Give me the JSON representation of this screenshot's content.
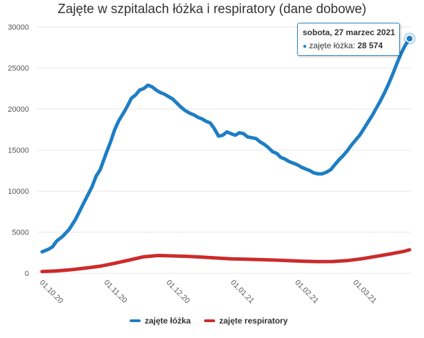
{
  "chart_data": {
    "type": "line",
    "title": "Zajęte w szpitalach łóżka i respiratory (dane dobowe)",
    "x_tick_labels": [
      "01.10.20",
      "01.11.20",
      "01.12.20",
      "01.01.21",
      "01.02.21",
      "01.03.21"
    ],
    "y_tick_labels": [
      "0",
      "5000",
      "10000",
      "15000",
      "20000",
      "25000",
      "30000"
    ],
    "ylim": [
      0,
      30000
    ],
    "grid": true,
    "legend_position": "bottom-center",
    "x_first_date": "2020-10-01",
    "x_last_date": "2021-03-27",
    "series": [
      {
        "name": "zajęte łóżka",
        "color": "#1e7ec3",
        "points": [
          [
            "2020-10-01",
            2600
          ],
          [
            "2020-10-04",
            2900
          ],
          [
            "2020-10-06",
            3200
          ],
          [
            "2020-10-08",
            3900
          ],
          [
            "2020-10-11",
            4500
          ],
          [
            "2020-10-14",
            5300
          ],
          [
            "2020-10-17",
            6500
          ],
          [
            "2020-10-20",
            8000
          ],
          [
            "2020-10-22",
            9000
          ],
          [
            "2020-10-25",
            10500
          ],
          [
            "2020-10-27",
            11800
          ],
          [
            "2020-10-29",
            12600
          ],
          [
            "2020-11-01",
            14700
          ],
          [
            "2020-11-03",
            16000
          ],
          [
            "2020-11-05",
            17500
          ],
          [
            "2020-11-07",
            18600
          ],
          [
            "2020-11-09",
            19400
          ],
          [
            "2020-11-11",
            20300
          ],
          [
            "2020-11-13",
            21300
          ],
          [
            "2020-11-15",
            21700
          ],
          [
            "2020-11-17",
            22300
          ],
          [
            "2020-11-19",
            22500
          ],
          [
            "2020-11-21",
            22900
          ],
          [
            "2020-11-23",
            22700
          ],
          [
            "2020-11-25",
            22300
          ],
          [
            "2020-11-27",
            22000
          ],
          [
            "2020-11-29",
            21800
          ],
          [
            "2020-12-01",
            21500
          ],
          [
            "2020-12-03",
            21200
          ],
          [
            "2020-12-05",
            20700
          ],
          [
            "2020-12-07",
            20200
          ],
          [
            "2020-12-09",
            19800
          ],
          [
            "2020-12-11",
            19500
          ],
          [
            "2020-12-13",
            19300
          ],
          [
            "2020-12-15",
            19000
          ],
          [
            "2020-12-17",
            18800
          ],
          [
            "2020-12-19",
            18500
          ],
          [
            "2020-12-21",
            18300
          ],
          [
            "2020-12-23",
            17600
          ],
          [
            "2020-12-25",
            16700
          ],
          [
            "2020-12-27",
            16800
          ],
          [
            "2020-12-29",
            17200
          ],
          [
            "2020-12-31",
            17000
          ],
          [
            "2021-01-02",
            16800
          ],
          [
            "2021-01-04",
            17100
          ],
          [
            "2021-01-06",
            17000
          ],
          [
            "2021-01-08",
            16600
          ],
          [
            "2021-01-10",
            16500
          ],
          [
            "2021-01-12",
            16400
          ],
          [
            "2021-01-14",
            16000
          ],
          [
            "2021-01-16",
            15700
          ],
          [
            "2021-01-18",
            15300
          ],
          [
            "2021-01-20",
            14800
          ],
          [
            "2021-01-22",
            14600
          ],
          [
            "2021-01-24",
            14100
          ],
          [
            "2021-01-26",
            13900
          ],
          [
            "2021-01-28",
            13600
          ],
          [
            "2021-01-30",
            13400
          ],
          [
            "2021-02-01",
            13200
          ],
          [
            "2021-02-03",
            12900
          ],
          [
            "2021-02-05",
            12700
          ],
          [
            "2021-02-07",
            12500
          ],
          [
            "2021-02-09",
            12200
          ],
          [
            "2021-02-11",
            12100
          ],
          [
            "2021-02-13",
            12100
          ],
          [
            "2021-02-15",
            12300
          ],
          [
            "2021-02-17",
            12600
          ],
          [
            "2021-02-19",
            13200
          ],
          [
            "2021-02-21",
            13800
          ],
          [
            "2021-02-23",
            14300
          ],
          [
            "2021-02-25",
            14900
          ],
          [
            "2021-02-27",
            15600
          ],
          [
            "2021-03-01",
            16200
          ],
          [
            "2021-03-03",
            16800
          ],
          [
            "2021-03-05",
            17600
          ],
          [
            "2021-03-07",
            18400
          ],
          [
            "2021-03-09",
            19200
          ],
          [
            "2021-03-11",
            20100
          ],
          [
            "2021-03-13",
            21000
          ],
          [
            "2021-03-15",
            22000
          ],
          [
            "2021-03-17",
            23100
          ],
          [
            "2021-03-19",
            24300
          ],
          [
            "2021-03-21",
            25600
          ],
          [
            "2021-03-23",
            26800
          ],
          [
            "2021-03-25",
            27800
          ],
          [
            "2021-03-27",
            28574
          ]
        ]
      },
      {
        "name": "zajęte respiratory",
        "color": "#cc2b2b",
        "points": [
          [
            "2020-10-01",
            200
          ],
          [
            "2020-10-08",
            280
          ],
          [
            "2020-10-15",
            420
          ],
          [
            "2020-10-22",
            620
          ],
          [
            "2020-10-29",
            850
          ],
          [
            "2020-11-05",
            1200
          ],
          [
            "2020-11-12",
            1600
          ],
          [
            "2020-11-19",
            2000
          ],
          [
            "2020-11-26",
            2150
          ],
          [
            "2020-12-03",
            2100
          ],
          [
            "2020-12-10",
            2050
          ],
          [
            "2020-12-17",
            1950
          ],
          [
            "2020-12-24",
            1850
          ],
          [
            "2020-12-31",
            1750
          ],
          [
            "2021-01-07",
            1700
          ],
          [
            "2021-01-14",
            1650
          ],
          [
            "2021-01-21",
            1600
          ],
          [
            "2021-01-28",
            1520
          ],
          [
            "2021-02-04",
            1450
          ],
          [
            "2021-02-11",
            1400
          ],
          [
            "2021-02-18",
            1420
          ],
          [
            "2021-02-25",
            1530
          ],
          [
            "2021-03-04",
            1750
          ],
          [
            "2021-03-11",
            2050
          ],
          [
            "2021-03-18",
            2350
          ],
          [
            "2021-03-25",
            2700
          ],
          [
            "2021-03-27",
            2850
          ]
        ]
      }
    ]
  },
  "tooltip": {
    "date": "sobota, 27 marzec 2021",
    "series_label": "zajęte łóżka",
    "value": "28 574"
  }
}
